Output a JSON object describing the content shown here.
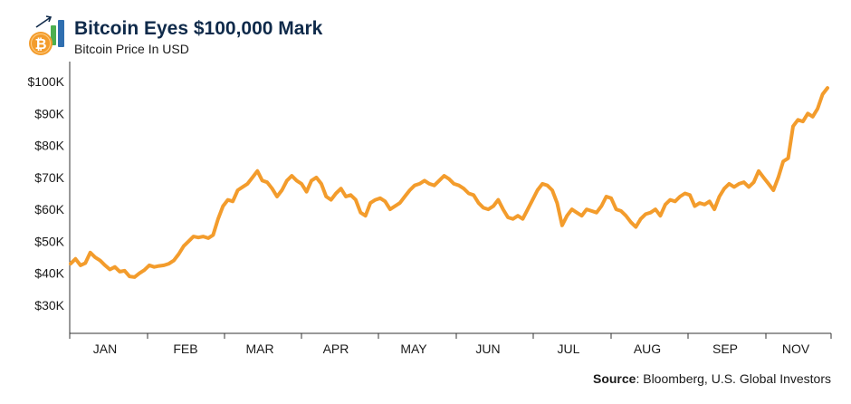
{
  "header": {
    "title": "Bitcoin Eyes $100,000 Mark",
    "subtitle": "Bitcoin Price In USD",
    "logo_icon": "bitcoin-growth-icon"
  },
  "source": {
    "label": "Source",
    "text": ": Bloomberg, U.S. Global Investors"
  },
  "colors": {
    "line": "#f39c2c",
    "coin": "#f39c2c",
    "bar_green": "#4caf50",
    "bar_blue": "#2f6fb0",
    "title": "#0f2a4a"
  },
  "chart_data": {
    "type": "line",
    "title": "Bitcoin Eyes $100,000 Mark",
    "subtitle": "Bitcoin Price In USD",
    "xlabel": "",
    "ylabel": "",
    "ylim": [
      20000,
      105000
    ],
    "yticks": [
      30000,
      40000,
      50000,
      60000,
      70000,
      80000,
      90000,
      100000
    ],
    "ytick_labels": [
      "$30K",
      "$40K",
      "$50K",
      "$60K",
      "$70K",
      "$80K",
      "$90K",
      "$100K"
    ],
    "month_labels": [
      "JAN",
      "FEB",
      "MAR",
      "APR",
      "MAY",
      "JUN",
      "JUL",
      "AUG",
      "SEP",
      "NOV"
    ],
    "grid": false,
    "legend": "none",
    "series": [
      {
        "values": [
          43000,
          44500,
          42500,
          43200,
          46500,
          45000,
          44000,
          42500,
          41200,
          42000,
          40500,
          40800,
          39000,
          38800,
          40000,
          41000,
          42500,
          42000,
          42300,
          42500,
          43000,
          44000,
          46000,
          48500,
          50000,
          51500,
          51200,
          51500,
          51000,
          52000,
          57000,
          61000,
          63000,
          62500,
          66000,
          67000,
          68000,
          70000,
          72000,
          69000,
          68500,
          66500,
          64000,
          66000,
          69000,
          70500,
          69000,
          68000,
          65500,
          69000,
          70000,
          68000,
          64000,
          63000,
          65000,
          66500,
          64000,
          64500,
          63000,
          59000,
          58000,
          62000,
          63000,
          63500,
          62500,
          60000,
          61000,
          62000,
          64000,
          66000,
          67500,
          68000,
          69000,
          68000,
          67500,
          69000,
          70500,
          69500,
          68000,
          67500,
          66500,
          65000,
          64500,
          62000,
          60500,
          60000,
          61000,
          63000,
          60000,
          57500,
          57000,
          58000,
          57000,
          60000,
          63000,
          66000,
          68000,
          67500,
          66000,
          62000,
          55000,
          58000,
          60000,
          59000,
          58000,
          60000,
          59500,
          59000,
          61000,
          64000,
          63500,
          60000,
          59500,
          58000,
          56000,
          54500,
          57000,
          58500,
          59000,
          60000,
          58000,
          61500,
          63000,
          62500,
          64000,
          65000,
          64500,
          61000,
          62000,
          61500,
          62500,
          60000,
          64000,
          66500,
          68000,
          67000,
          68000,
          68500,
          67000,
          68500,
          72000,
          70000,
          68000,
          66000,
          70000,
          75000,
          76000,
          86000,
          88000,
          87500,
          90000,
          89000,
          91500,
          96000,
          98000
        ]
      }
    ]
  }
}
